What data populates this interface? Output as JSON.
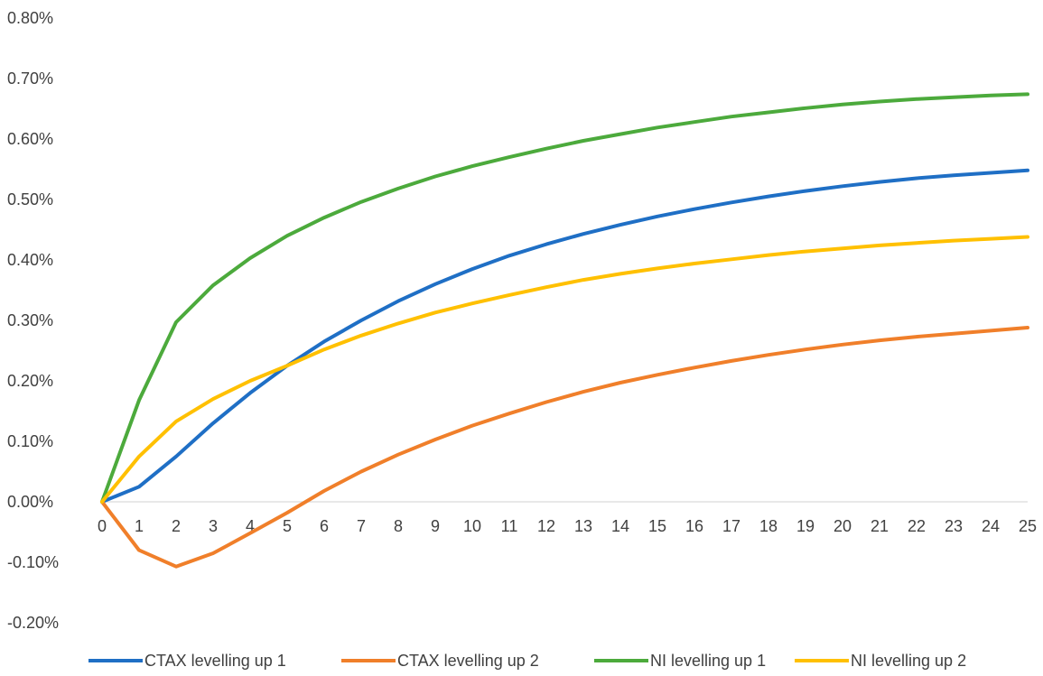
{
  "chart_data": {
    "type": "line",
    "title": "",
    "xlabel": "",
    "ylabel": "",
    "x": [
      0,
      1,
      2,
      3,
      4,
      5,
      6,
      7,
      8,
      9,
      10,
      11,
      12,
      13,
      14,
      15,
      16,
      17,
      18,
      19,
      20,
      21,
      22,
      23,
      24,
      25
    ],
    "ylim": [
      -0.2,
      0.8
    ],
    "yticks": [
      -0.2,
      -0.1,
      0.0,
      0.1,
      0.2,
      0.3,
      0.4,
      0.5,
      0.6,
      0.7,
      0.8
    ],
    "ytick_labels": [
      "-0.20%",
      "-0.10%",
      "0.00%",
      "0.10%",
      "0.20%",
      "0.30%",
      "0.40%",
      "0.50%",
      "0.60%",
      "0.70%",
      "0.80%"
    ],
    "grid": false,
    "legend_position": "bottom",
    "series": [
      {
        "name": "CTAX levelling up 1",
        "color": "#1F6FC5",
        "values": [
          0.0,
          0.025,
          0.075,
          0.13,
          0.18,
          0.225,
          0.265,
          0.3,
          0.332,
          0.36,
          0.385,
          0.407,
          0.426,
          0.443,
          0.458,
          0.472,
          0.484,
          0.495,
          0.505,
          0.514,
          0.522,
          0.529,
          0.535,
          0.54,
          0.544,
          0.548
        ]
      },
      {
        "name": "CTAX levelling up 2",
        "color": "#F07F2A",
        "values": [
          0.0,
          -0.08,
          -0.107,
          -0.085,
          -0.052,
          -0.018,
          0.018,
          0.05,
          0.078,
          0.103,
          0.126,
          0.146,
          0.165,
          0.182,
          0.197,
          0.21,
          0.222,
          0.233,
          0.243,
          0.252,
          0.26,
          0.267,
          0.273,
          0.278,
          0.283,
          0.288
        ]
      },
      {
        "name": "NI levelling up 1",
        "color": "#4CAA3C",
        "values": [
          0.0,
          0.168,
          0.297,
          0.358,
          0.403,
          0.44,
          0.47,
          0.496,
          0.518,
          0.538,
          0.555,
          0.57,
          0.584,
          0.597,
          0.608,
          0.619,
          0.628,
          0.637,
          0.644,
          0.651,
          0.657,
          0.662,
          0.666,
          0.669,
          0.672,
          0.674
        ]
      },
      {
        "name": "NI levelling up 2",
        "color": "#FFC000",
        "values": [
          0.0,
          0.075,
          0.133,
          0.17,
          0.2,
          0.225,
          0.252,
          0.275,
          0.295,
          0.313,
          0.328,
          0.342,
          0.355,
          0.367,
          0.377,
          0.386,
          0.394,
          0.401,
          0.408,
          0.414,
          0.419,
          0.424,
          0.428,
          0.432,
          0.435,
          0.438
        ]
      }
    ]
  }
}
